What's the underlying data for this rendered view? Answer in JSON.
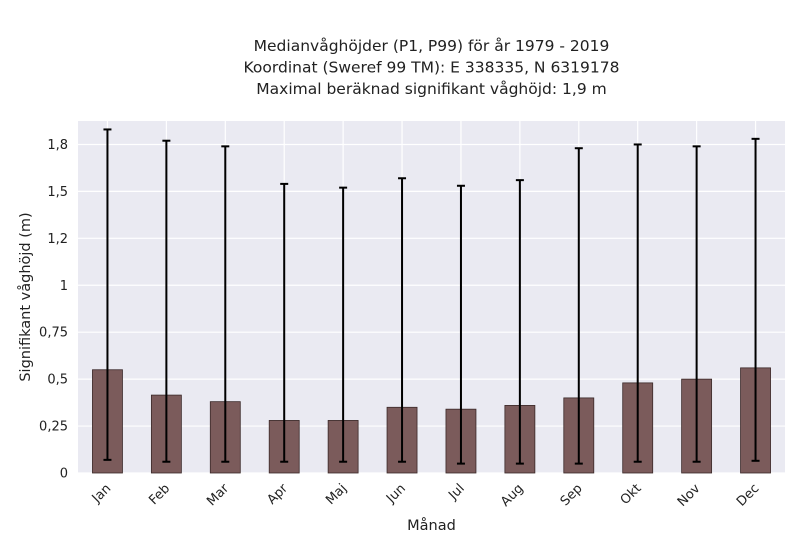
{
  "chart_data": {
    "type": "bar",
    "title_lines": [
      "Medianvåghöjder (P1, P99) för år 1979 - 2019",
      "Koordinat (Sweref 99 TM): E 338335, N 6319178",
      "Maximal beräknad signifikant våghöjd: 1,9 m"
    ],
    "xlabel": "Månad",
    "ylabel": "Signifikant våghöjd (m)",
    "categories": [
      "Jan",
      "Feb",
      "Mar",
      "Apr",
      "Maj",
      "Jun",
      "Jul",
      "Aug",
      "Sep",
      "Okt",
      "Nov",
      "Dec"
    ],
    "series": [
      {
        "values": [
          0.55,
          0.415,
          0.38,
          0.28,
          0.28,
          0.35,
          0.34,
          0.36,
          0.4,
          0.48,
          0.5,
          0.56
        ],
        "error_low": [
          0.07,
          0.06,
          0.06,
          0.06,
          0.06,
          0.06,
          0.05,
          0.05,
          0.05,
          0.06,
          0.06,
          0.065
        ],
        "error_high": [
          1.83,
          1.77,
          1.74,
          1.54,
          1.52,
          1.57,
          1.53,
          1.56,
          1.73,
          1.75,
          1.74,
          1.78
        ]
      }
    ],
    "yticks": [
      0,
      0.25,
      0.5,
      0.75,
      1,
      1.25,
      1.5,
      1.75
    ],
    "ytick_labels": [
      "0",
      "0,25",
      "0,5",
      "0,75",
      "1",
      "1,2",
      "1,5",
      "1,8"
    ],
    "ylim": [
      0,
      1.875
    ],
    "grid": true,
    "colors": {
      "bar_fill": "#7b5b5b",
      "bar_edge": "#3a2828",
      "error_bar": "#000000",
      "plot_background": "#eaeaf2",
      "grid": "#ffffff"
    }
  }
}
